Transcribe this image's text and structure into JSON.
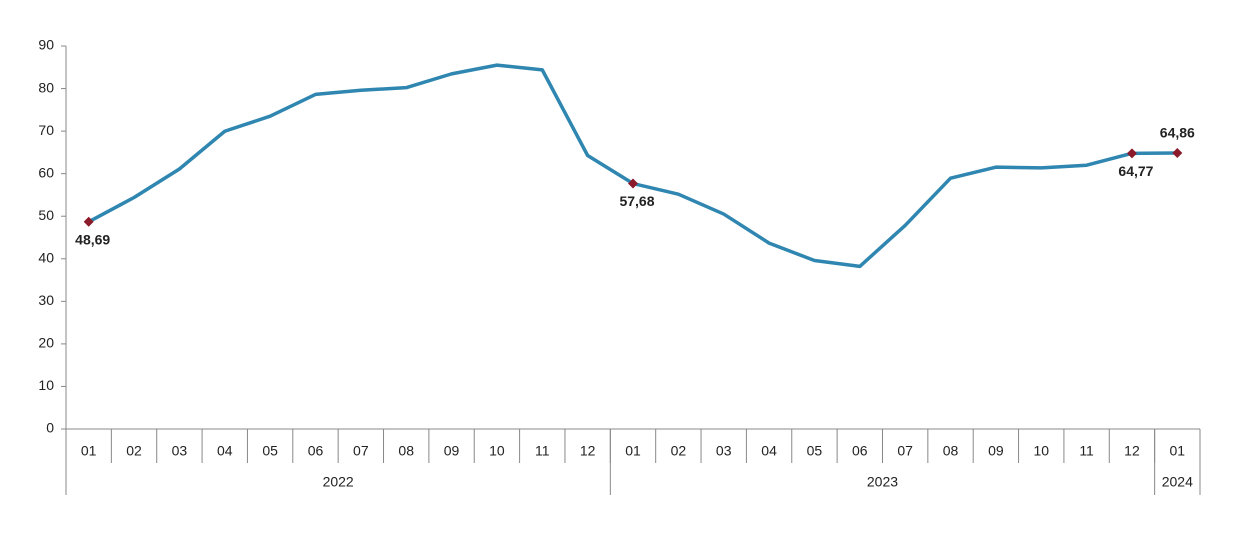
{
  "chart_data": {
    "type": "line",
    "groups": [
      {
        "name": "2022",
        "categories": [
          "01",
          "02",
          "03",
          "04",
          "05",
          "06",
          "07",
          "08",
          "09",
          "10",
          "11",
          "12"
        ]
      },
      {
        "name": "2023",
        "categories": [
          "01",
          "02",
          "03",
          "04",
          "05",
          "06",
          "07",
          "08",
          "09",
          "10",
          "11",
          "12"
        ]
      },
      {
        "name": "2024",
        "categories": [
          "01"
        ]
      }
    ],
    "values": [
      48.69,
      54.4,
      61.1,
      69.97,
      73.5,
      78.62,
      79.6,
      80.21,
      83.45,
      85.51,
      84.39,
      64.27,
      57.68,
      55.18,
      50.51,
      43.68,
      39.59,
      38.21,
      47.83,
      58.94,
      61.53,
      61.36,
      61.98,
      64.77,
      64.86
    ],
    "value_labels": [
      "48,69",
      null,
      null,
      null,
      null,
      null,
      null,
      null,
      null,
      null,
      null,
      null,
      "57,68",
      null,
      null,
      null,
      null,
      null,
      null,
      null,
      null,
      null,
      null,
      "64,77",
      "64,86"
    ],
    "color": "#2f86b0",
    "marker_color": "#8b1a2b",
    "ylim": [
      0,
      90
    ],
    "yticks": [
      0,
      10,
      20,
      30,
      40,
      50,
      60,
      70,
      80,
      90
    ],
    "grid": false
  }
}
